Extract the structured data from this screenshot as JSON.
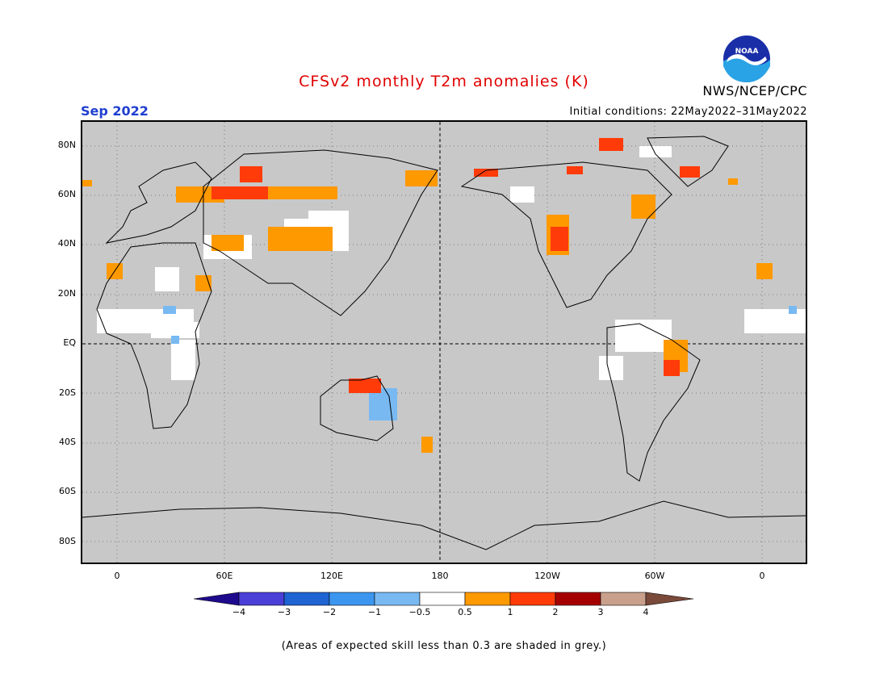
{
  "header": {
    "title": "CFSv2 monthly T2m anomalies (K)",
    "agency": "NWS/NCEP/CPC",
    "month": "Sep 2022",
    "initial_conditions": "Initial conditions: 22May2022–31May2022",
    "logo_text": "NOAA"
  },
  "colors": {
    "title": "#e00000",
    "month": "#1f3fd0",
    "map_background": "#c8c8c8",
    "logo_blue": "#1a2ea8",
    "logo_cyan": "#2aa3e6"
  },
  "axes": {
    "lat_labels": [
      "80N",
      "60N",
      "40N",
      "20N",
      "EQ",
      "20S",
      "40S",
      "60S",
      "80S"
    ],
    "lon_labels": [
      "0",
      "60E",
      "120E",
      "180",
      "120W",
      "60W",
      "0"
    ]
  },
  "colorbar": {
    "tick_labels": [
      "−4",
      "−3",
      "−2",
      "−1",
      "−0.5",
      "0.5",
      "1",
      "2",
      "3",
      "4"
    ],
    "colors": [
      "#1e0a8c",
      "#4a3fd6",
      "#1f64d2",
      "#3c96f0",
      "#78b9f2",
      "#ffffff",
      "#ff9900",
      "#ff3b0a",
      "#a50000",
      "#c9a08c",
      "#7a4a3a"
    ]
  },
  "footnote": "(Areas of expected skill less than 0.3 are shaded in grey.)"
}
